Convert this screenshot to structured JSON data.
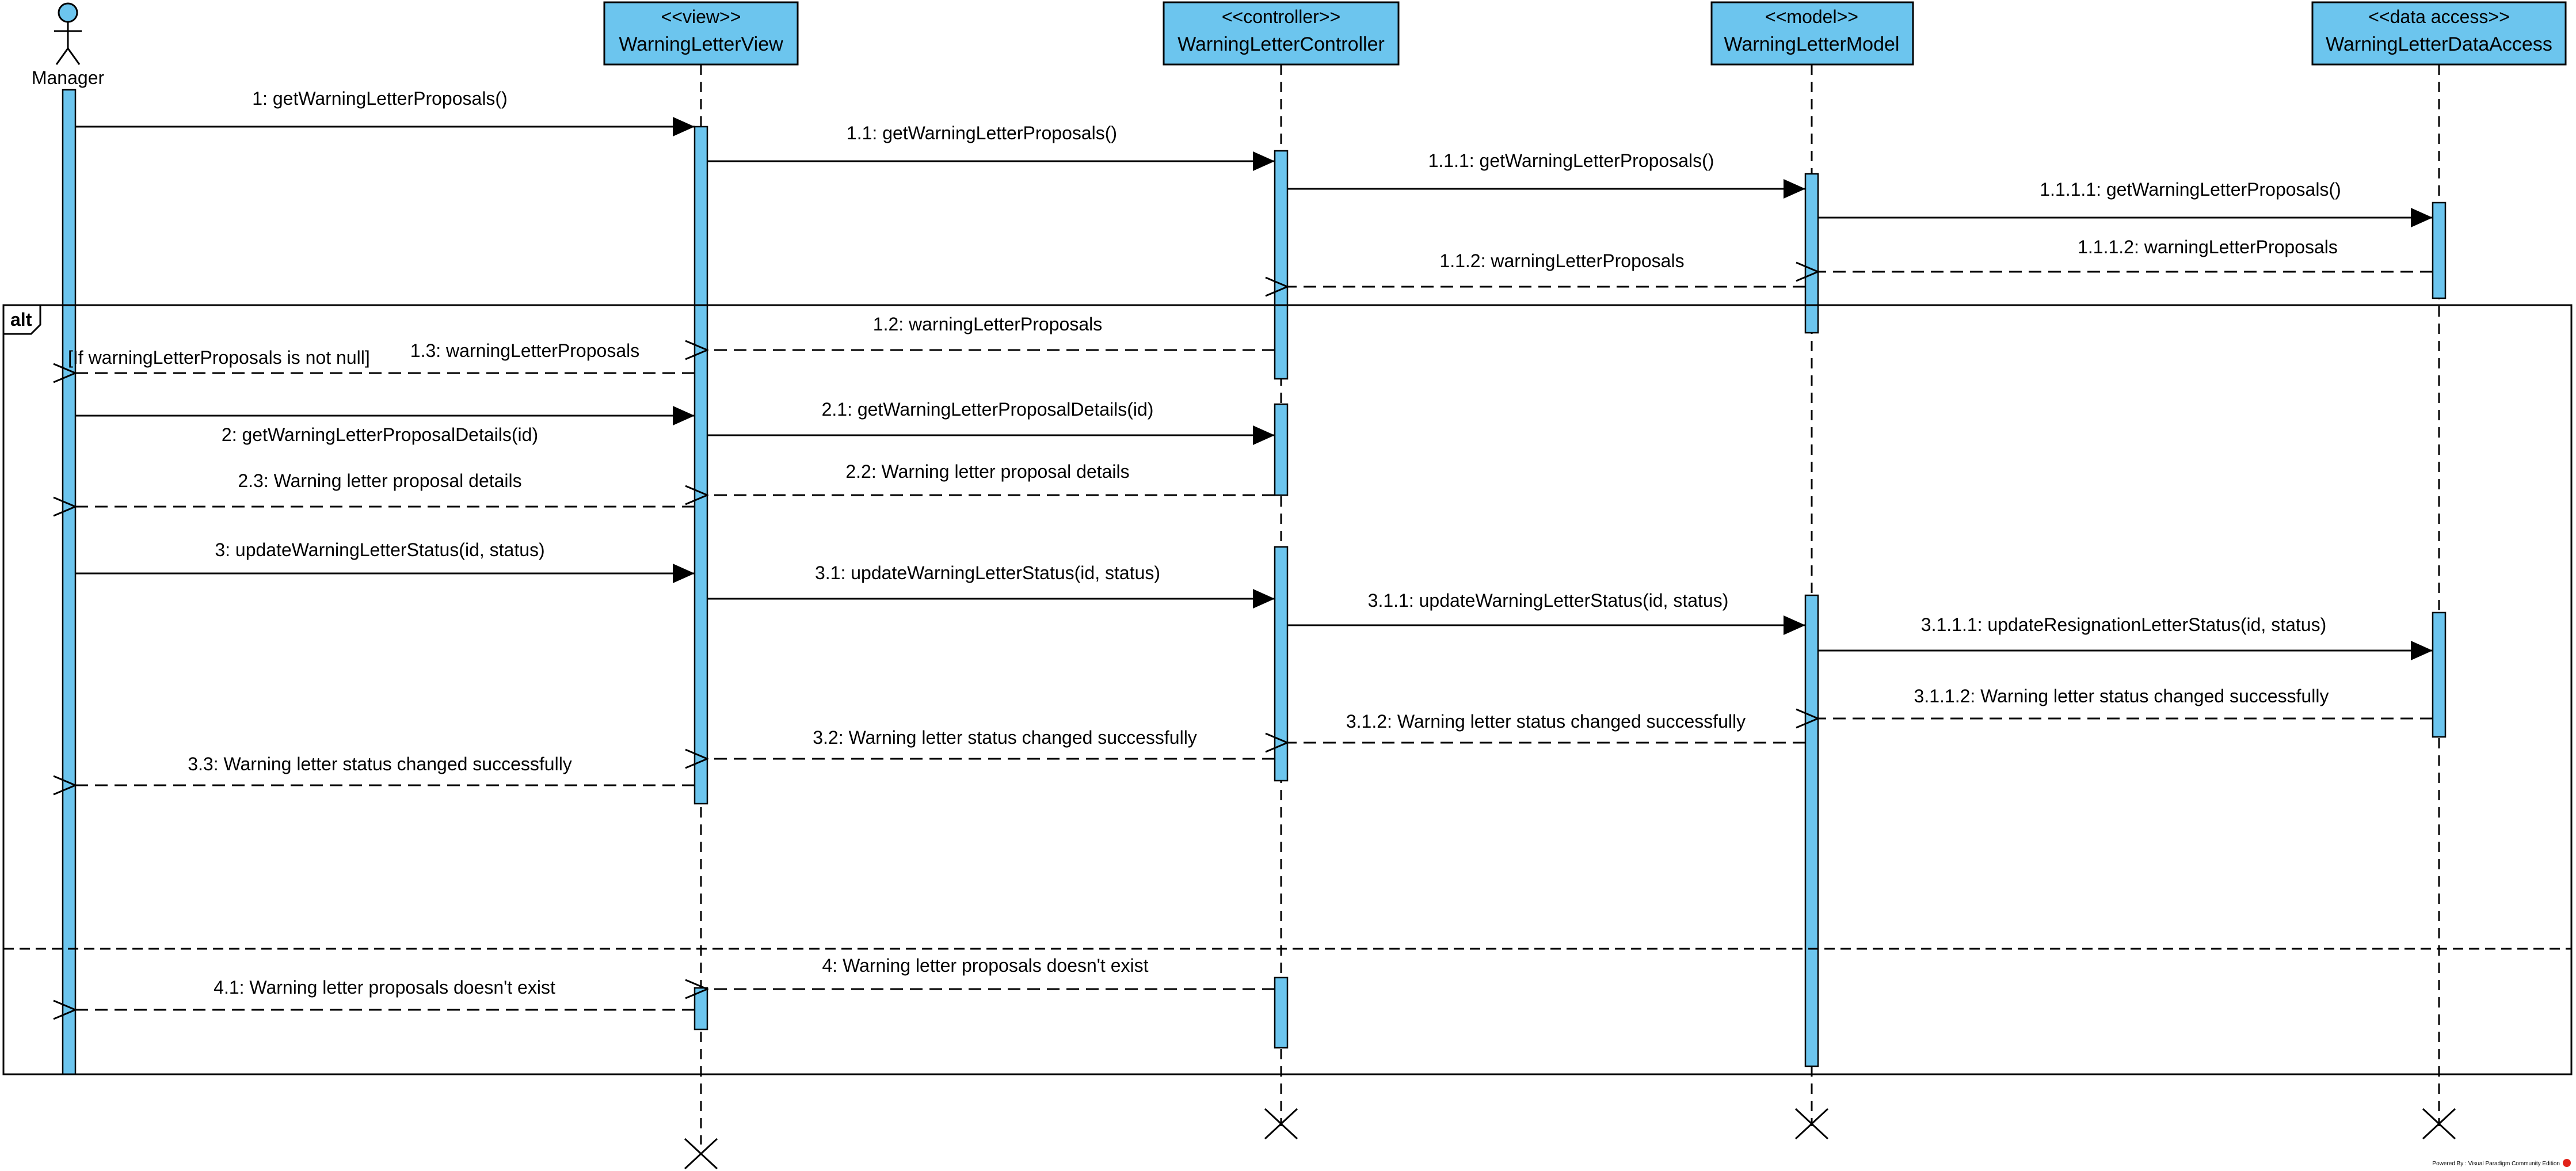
{
  "diagram": {
    "actor": {
      "name": "Manager"
    },
    "lifelines": [
      {
        "stereotype": "<<view>>",
        "name": "WarningLetterView"
      },
      {
        "stereotype": "<<controller>>",
        "name": "WarningLetterController"
      },
      {
        "stereotype": "<<model>>",
        "name": "WarningLetterModel"
      },
      {
        "stereotype": "<<data access>>",
        "name": "WarningLetterDataAccess"
      }
    ],
    "fragment": {
      "operator": "alt",
      "guard": "[If warningLetterProposals is not null]"
    },
    "messages": [
      {
        "id": "m1",
        "label": "1: getWarningLetterProposals()",
        "type": "sync"
      },
      {
        "id": "m2",
        "label": "1.1: getWarningLetterProposals()",
        "type": "sync"
      },
      {
        "id": "m3",
        "label": "1.1.1: getWarningLetterProposals()",
        "type": "sync"
      },
      {
        "id": "m4",
        "label": "1.1.1.1: getWarningLetterProposals()",
        "type": "sync"
      },
      {
        "id": "m5",
        "label": "1.1.1.2: warningLetterProposals",
        "type": "return"
      },
      {
        "id": "m6",
        "label": "1.1.2: warningLetterProposals",
        "type": "return"
      },
      {
        "id": "m7",
        "label": "1.2: warningLetterProposals",
        "type": "return"
      },
      {
        "id": "m8",
        "label": "1.3: warningLetterProposals",
        "type": "return"
      },
      {
        "id": "m9",
        "label": "2: getWarningLetterProposalDetails(id)",
        "type": "sync"
      },
      {
        "id": "m10",
        "label": "2.1: getWarningLetterProposalDetails(id)",
        "type": "sync"
      },
      {
        "id": "m11",
        "label": "2.2: Warning letter proposal details",
        "type": "return"
      },
      {
        "id": "m12",
        "label": "2.3: Warning letter proposal details",
        "type": "return"
      },
      {
        "id": "m13",
        "label": "3: updateWarningLetterStatus(id, status)",
        "type": "sync"
      },
      {
        "id": "m14",
        "label": "3.1: updateWarningLetterStatus(id, status)",
        "type": "sync"
      },
      {
        "id": "m15",
        "label": "3.1.1: updateWarningLetterStatus(id, status)",
        "type": "sync"
      },
      {
        "id": "m16",
        "label": "3.1.1.1: updateResignationLetterStatus(id, status)",
        "type": "sync"
      },
      {
        "id": "m17",
        "label": "3.1.1.2: Warning letter status changed successfully",
        "type": "return"
      },
      {
        "id": "m18",
        "label": "3.1.2: Warning letter status changed successfully",
        "type": "return"
      },
      {
        "id": "m19",
        "label": "3.2: Warning letter status changed successfully",
        "type": "return"
      },
      {
        "id": "m20",
        "label": "3.3: Warning letter status changed successfully",
        "type": "return"
      },
      {
        "id": "m21",
        "label": "4: Warning letter proposals doesn't exist",
        "type": "return"
      },
      {
        "id": "m22",
        "label": "4.1: Warning letter proposals doesn't exist",
        "type": "return"
      }
    ],
    "footer": "Powered By : Visual Paradigm Community Edition",
    "colors": {
      "box": "#6CC5EE",
      "line": "#000000",
      "background": "#FFFFFF",
      "logo": "#E2231A"
    }
  }
}
